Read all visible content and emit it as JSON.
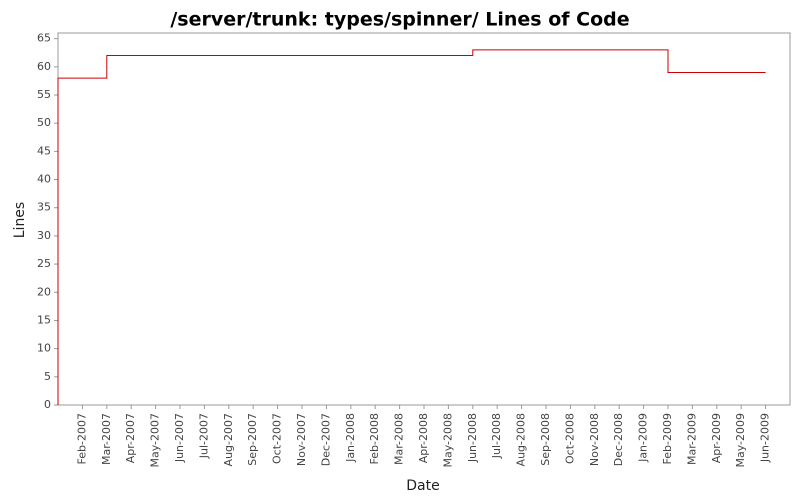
{
  "chart_data": {
    "type": "step-line",
    "title": "/server/trunk: types/spinner/ Lines of Code",
    "xlabel": "Date",
    "ylabel": "Lines",
    "x": [
      "2007-01",
      "2007-01",
      "2007-03",
      "2007-03",
      "2008-06",
      "2009-02",
      "2009-06"
    ],
    "series": [
      {
        "color": "#cc0000",
        "values": [
          0,
          58,
          61,
          62,
          63,
          59,
          59
        ]
      }
    ],
    "step": "post",
    "xlim": [
      "2007-01",
      "2009-07"
    ],
    "xticks": [
      {
        "value": "2007-02",
        "label": "Feb-2007"
      },
      {
        "value": "2007-03",
        "label": "Mar-2007"
      },
      {
        "value": "2007-04",
        "label": "Apr-2007"
      },
      {
        "value": "2007-05",
        "label": "May-2007"
      },
      {
        "value": "2007-06",
        "label": "Jun-2007"
      },
      {
        "value": "2007-07",
        "label": "Jul-2007"
      },
      {
        "value": "2007-08",
        "label": "Aug-2007"
      },
      {
        "value": "2007-09",
        "label": "Sep-2007"
      },
      {
        "value": "2007-10",
        "label": "Oct-2007"
      },
      {
        "value": "2007-11",
        "label": "Nov-2007"
      },
      {
        "value": "2007-12",
        "label": "Dec-2007"
      },
      {
        "value": "2008-01",
        "label": "Jan-2008"
      },
      {
        "value": "2008-02",
        "label": "Feb-2008"
      },
      {
        "value": "2008-03",
        "label": "Mar-2008"
      },
      {
        "value": "2008-04",
        "label": "Apr-2008"
      },
      {
        "value": "2008-05",
        "label": "May-2008"
      },
      {
        "value": "2008-06",
        "label": "Jun-2008"
      },
      {
        "value": "2008-07",
        "label": "Jul-2008"
      },
      {
        "value": "2008-08",
        "label": "Aug-2008"
      },
      {
        "value": "2008-09",
        "label": "Sep-2008"
      },
      {
        "value": "2008-10",
        "label": "Oct-2008"
      },
      {
        "value": "2008-11",
        "label": "Nov-2008"
      },
      {
        "value": "2008-12",
        "label": "Dec-2008"
      },
      {
        "value": "2009-01",
        "label": "Jan-2009"
      },
      {
        "value": "2009-02",
        "label": "Feb-2009"
      },
      {
        "value": "2009-03",
        "label": "Mar-2009"
      },
      {
        "value": "2009-04",
        "label": "Apr-2009"
      },
      {
        "value": "2009-05",
        "label": "May-2009"
      },
      {
        "value": "2009-06",
        "label": "Jun-2009"
      }
    ],
    "ylim": [
      0,
      66
    ],
    "yticks": [
      0,
      5,
      10,
      15,
      20,
      25,
      30,
      35,
      40,
      45,
      50,
      55,
      60,
      65
    ]
  }
}
